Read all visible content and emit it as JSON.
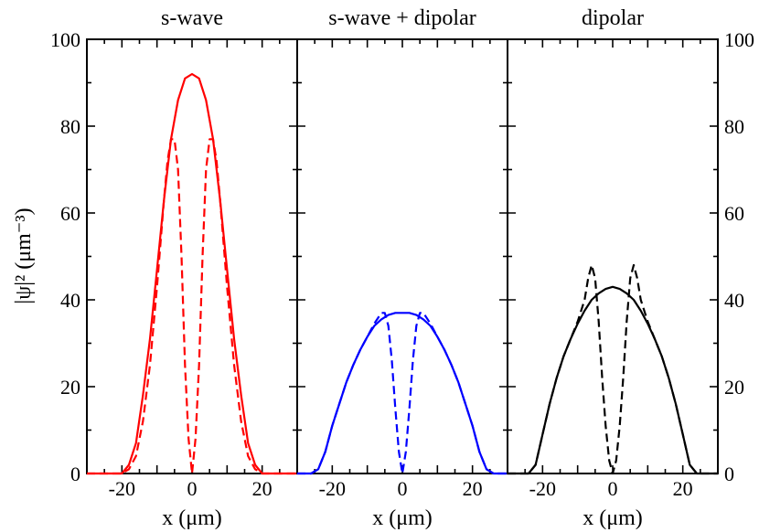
{
  "chart_data": {
    "type": "line",
    "y_axis_label": "|ψ|² (μm⁻³)",
    "ylim": [
      0,
      100
    ],
    "y_ticks": [
      0,
      20,
      40,
      60,
      80,
      100
    ],
    "xlim": [
      -30,
      30
    ],
    "x_ticks": [
      -20,
      0,
      20
    ],
    "panels": [
      {
        "title": "s-wave",
        "xlabel": "x (μm)",
        "color": "#ff0000",
        "series": [
          {
            "name": "solid",
            "style": "solid",
            "x": [
              -30,
              -20,
              -18,
              -16,
              -14,
              -12,
              -10,
              -8,
              -6,
              -4,
              -2,
              0,
              2,
              4,
              6,
              8,
              10,
              12,
              14,
              16,
              18,
              20,
              30
            ],
            "y": [
              0,
              0,
              2,
              7,
              18,
              31,
              47,
              63,
              77,
              86,
              91,
              92,
              91,
              86,
              77,
              63,
              47,
              31,
              18,
              7,
              2,
              0,
              0
            ]
          },
          {
            "name": "dashed",
            "style": "dashed",
            "x": [
              -30,
              -20,
              -18,
              -16,
              -14,
              -12,
              -10,
              -8,
              -7,
              -6,
              -5,
              -4,
              -3,
              -2,
              -1,
              0,
              1,
              2,
              3,
              4,
              5,
              6,
              7,
              8,
              10,
              12,
              14,
              16,
              18,
              20,
              30
            ],
            "y": [
              0,
              0,
              1,
              4,
              12,
              25,
              43,
              63,
              72,
              77,
              77,
              70,
              50,
              25,
              8,
              0,
              8,
              25,
              50,
              70,
              77,
              77,
              72,
              63,
              43,
              25,
              12,
              4,
              1,
              0,
              0
            ]
          }
        ]
      },
      {
        "title": "s-wave + dipolar",
        "xlabel": "x (μm)",
        "color": "#0000ff",
        "series": [
          {
            "name": "solid",
            "style": "solid",
            "x": [
              -30,
              -26,
              -24,
              -22,
              -20,
              -18,
              -16,
              -14,
              -12,
              -10,
              -8,
              -6,
              -4,
              -2,
              0,
              2,
              4,
              6,
              8,
              10,
              12,
              14,
              16,
              18,
              20,
              22,
              24,
              26,
              30
            ],
            "y": [
              0,
              0,
              1,
              5,
              11,
              16,
              21,
              25,
              28.5,
              31.5,
              34,
              35.5,
              36.5,
              37,
              37,
              37,
              36.5,
              35.5,
              34,
              31.5,
              28.5,
              25,
              21,
              16,
              11,
              5,
              1,
              0,
              0
            ]
          },
          {
            "name": "dashed",
            "style": "dashed",
            "x": [
              -30,
              -26,
              -24,
              -22,
              -20,
              -18,
              -16,
              -14,
              -12,
              -10,
              -8,
              -6,
              -5,
              -4,
              -3,
              -2,
              -1,
              0,
              1,
              2,
              3,
              4,
              5,
              6,
              8,
              10,
              12,
              14,
              16,
              18,
              20,
              22,
              24,
              26,
              30
            ],
            "y": [
              0,
              0,
              1,
              5,
              11,
              16,
              21,
              25,
              28.5,
              31.5,
              34.5,
              37,
              37,
              34,
              26,
              15,
              5,
              0,
              5,
              15,
              26,
              34,
              37,
              37,
              34.5,
              31.5,
              28.5,
              25,
              21,
              16,
              11,
              5,
              1,
              0,
              0
            ]
          }
        ]
      },
      {
        "title": "dipolar",
        "xlabel": "x (μm)",
        "color": "#000000",
        "series": [
          {
            "name": "solid",
            "style": "solid",
            "x": [
              -30,
              -24,
              -22,
              -20,
              -18,
              -16,
              -14,
              -12,
              -10,
              -8,
              -6,
              -4,
              -2,
              0,
              2,
              4,
              6,
              8,
              10,
              12,
              14,
              16,
              18,
              20,
              22,
              24,
              30
            ],
            "y": [
              0,
              0,
              2,
              9,
              16,
              22,
              27,
              31,
              34.5,
              37.5,
              40,
              41.5,
              42.5,
              43,
              42.5,
              41.5,
              40,
              37.5,
              34.5,
              31,
              27,
              22,
              16,
              9,
              2,
              0,
              0
            ]
          },
          {
            "name": "dashed",
            "style": "dashed",
            "x": [
              -30,
              -24,
              -22,
              -20,
              -18,
              -16,
              -14,
              -12,
              -10,
              -8,
              -7,
              -6,
              -5,
              -4,
              -3,
              -2,
              -1,
              0,
              1,
              2,
              3,
              4,
              5,
              6,
              7,
              8,
              10,
              12,
              14,
              16,
              18,
              20,
              22,
              24,
              30
            ],
            "y": [
              0,
              0,
              2,
              9,
              16,
              22,
              27,
              31,
              35,
              40,
              45,
              48,
              45,
              35,
              22,
              11,
              3,
              0,
              3,
              11,
              22,
              35,
              45,
              48,
              45,
              40,
              35,
              31,
              27,
              22,
              16,
              9,
              2,
              0,
              0
            ]
          }
        ]
      }
    ]
  }
}
